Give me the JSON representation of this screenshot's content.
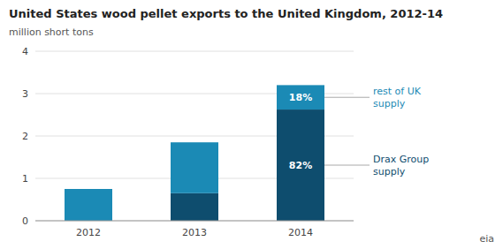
{
  "chart_data": {
    "type": "bar",
    "stacked": true,
    "title": "United States wood pellet exports to the United Kingdom, 2012-14",
    "subtitle": "million short tons",
    "categories": [
      "2012",
      "2013",
      "2014"
    ],
    "series": [
      {
        "name": "Drax Group\nsupply",
        "color": "#0e4d6e",
        "values": [
          0.0,
          0.65,
          2.624
        ]
      },
      {
        "name": "rest of UK\nsupply",
        "color": "#1b8ab5",
        "values": [
          0.75,
          1.2,
          0.576
        ]
      }
    ],
    "annotations": [
      {
        "text": "82%",
        "category": "2014",
        "series": "Drax Group\nsupply"
      },
      {
        "text": "18%",
        "category": "2014",
        "series": "rest of UK\nsupply"
      }
    ],
    "footer": "eia",
    "ylim": [
      0,
      4
    ],
    "yticks": [
      0,
      1,
      2,
      3,
      4
    ],
    "grid": true,
    "legend": "right"
  }
}
